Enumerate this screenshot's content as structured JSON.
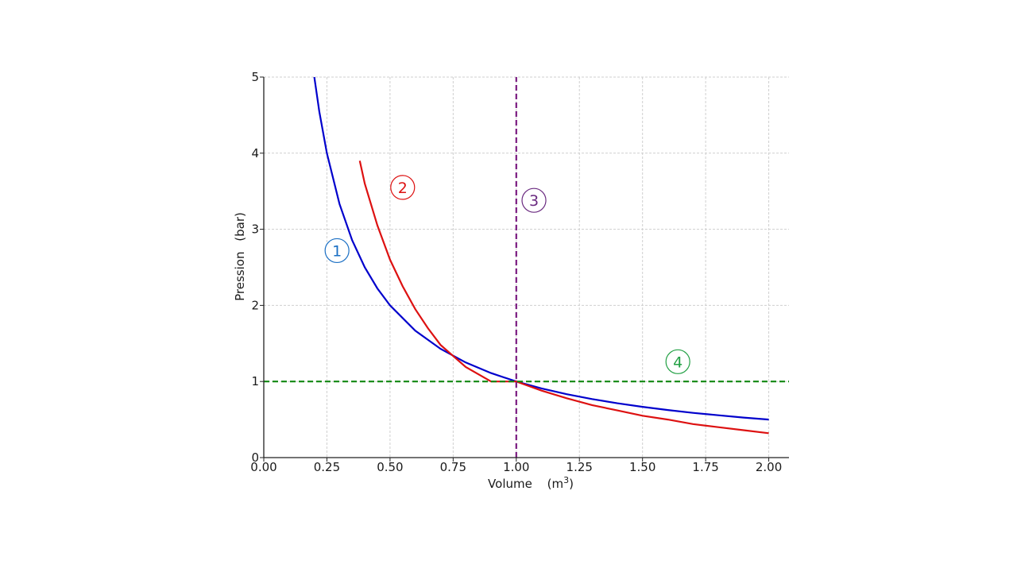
{
  "chart_data": {
    "type": "line",
    "title": "",
    "xlabel": "Volume",
    "xlabel_unit": "(m",
    "xlabel_unit_exp": "3",
    "xlabel_unit_close": ")",
    "ylabel": "Pression",
    "ylabel_unit": "(bar)",
    "xlim": [
      0,
      2.08
    ],
    "ylim": [
      0,
      5
    ],
    "x_ticks": [
      "0.00",
      "0.25",
      "0.50",
      "0.75",
      "1.00",
      "1.25",
      "1.50",
      "1.75",
      "2.00"
    ],
    "y_ticks": [
      "0",
      "1",
      "2",
      "3",
      "4",
      "5"
    ],
    "grid": true,
    "series": [
      {
        "label": "1",
        "color": "#0000cc",
        "style": "solid",
        "x": [
          0.2,
          0.22,
          0.25,
          0.3,
          0.35,
          0.4,
          0.45,
          0.5,
          0.6,
          0.7,
          0.8,
          0.9,
          1.0,
          1.1,
          1.2,
          1.3,
          1.4,
          1.5,
          1.6,
          1.7,
          1.8,
          1.9,
          2.0
        ],
        "y": [
          5.0,
          4.545,
          4.0,
          3.333,
          2.857,
          2.5,
          2.222,
          2.0,
          1.667,
          1.429,
          1.25,
          1.111,
          1.0,
          0.909,
          0.833,
          0.769,
          0.714,
          0.667,
          0.625,
          0.588,
          0.556,
          0.526,
          0.5
        ]
      },
      {
        "label": "2",
        "color": "#dd1111",
        "style": "solid",
        "x": [
          0.38,
          0.4,
          0.45,
          0.5,
          0.55,
          0.6,
          0.65,
          0.7,
          0.8,
          0.9,
          1.0,
          1.1,
          1.2,
          1.3,
          1.4,
          1.5,
          1.6,
          1.7,
          1.8,
          1.9,
          2.0
        ],
        "y": [
          3.9,
          3.6,
          3.05,
          2.6,
          2.25,
          1.95,
          1.7,
          1.48,
          1.19,
          1.0,
          1.0,
          0.88,
          0.78,
          0.69,
          0.62,
          0.55,
          0.5,
          0.44,
          0.4,
          0.36,
          0.32
        ]
      },
      {
        "label": "3",
        "color": "#7a1a80",
        "style": "dashed",
        "x": [
          1.0,
          1.0
        ],
        "y": [
          0,
          5
        ]
      },
      {
        "label": "4",
        "color": "#118811",
        "style": "dashed",
        "x": [
          0,
          2.08
        ],
        "y": [
          1,
          1
        ]
      }
    ],
    "annotations": [
      {
        "text": "1",
        "x": 0.29,
        "y": 2.72,
        "color": "#1a6fc4"
      },
      {
        "text": "2",
        "x": 0.55,
        "y": 3.55,
        "color": "#dd1111"
      },
      {
        "text": "3",
        "x": 1.07,
        "y": 3.38,
        "color": "#6a2a80"
      },
      {
        "text": "4",
        "x": 1.64,
        "y": 1.26,
        "color": "#22a044"
      }
    ]
  }
}
